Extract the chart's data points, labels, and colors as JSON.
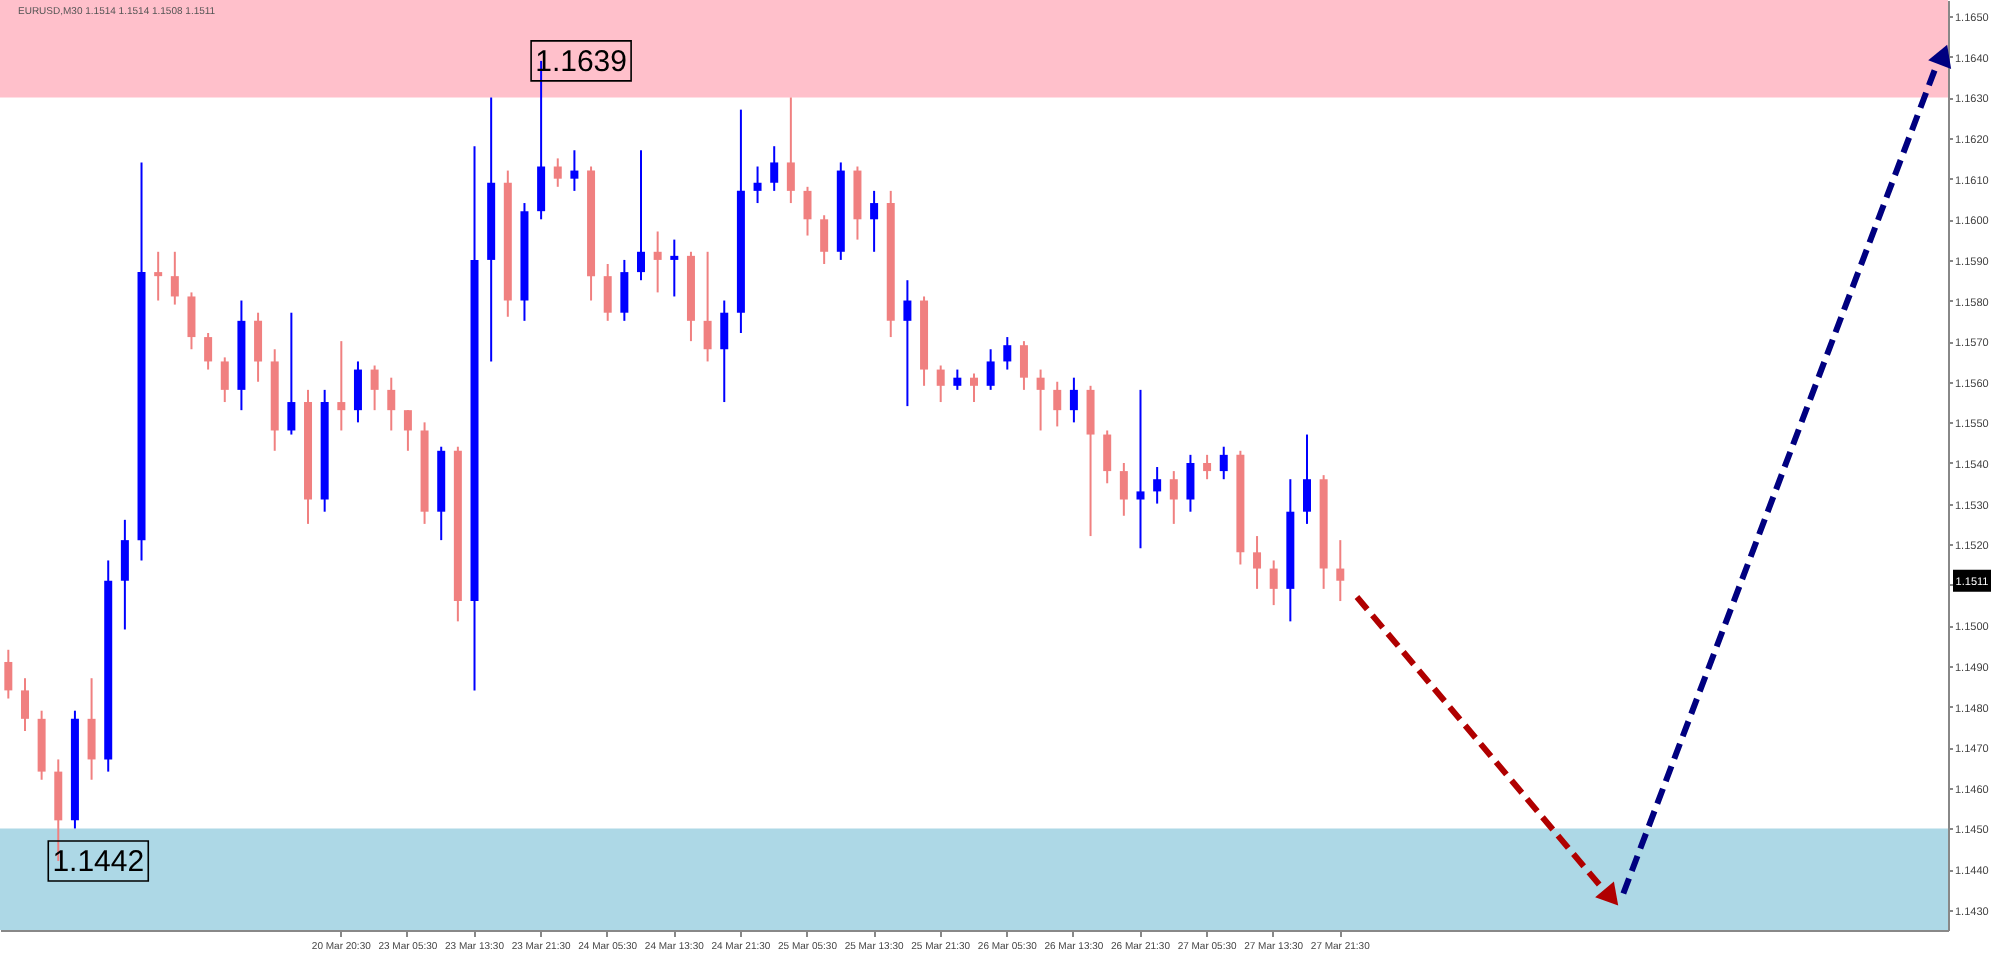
{
  "chart_data": {
    "type": "candlestick",
    "title": "EURUSD,M30 1.1514 1.1514 1.1508 1.1511",
    "categories": [
      null,
      null,
      null,
      null,
      null,
      null,
      null,
      null,
      null,
      null,
      null,
      null,
      null,
      null,
      null,
      null,
      null,
      null,
      null,
      null,
      "20 Mar 20:30",
      null,
      null,
      null,
      "23 Mar 05:30",
      null,
      null,
      null,
      "23 Mar 13:30",
      null,
      null,
      null,
      "23 Mar 21:30",
      null,
      null,
      null,
      "24 Mar 05:30",
      null,
      null,
      null,
      "24 Mar 13:30",
      null,
      null,
      null,
      "24 Mar 21:30",
      null,
      null,
      null,
      "25 Mar 05:30",
      null,
      null,
      null,
      "25 Mar 13:30",
      null,
      null,
      null,
      "25 Mar 21:30",
      null,
      null,
      null,
      "26 Mar 05:30",
      null,
      null,
      null,
      "26 Mar 13:30",
      null,
      null,
      null,
      "26 Mar 21:30",
      null,
      null,
      null,
      "27 Mar 05:30",
      null,
      null,
      null,
      "27 Mar 13:30",
      null,
      null,
      null,
      "27 Mar 21:30",
      null,
      null,
      null,
      null,
      null,
      null,
      null,
      null,
      null,
      null,
      null,
      null,
      null,
      null,
      null,
      null,
      null,
      null,
      null,
      null,
      null,
      null,
      null,
      null,
      null,
      null,
      null,
      null,
      null,
      null,
      null,
      null,
      null,
      null,
      null,
      null
    ],
    "ohlc": [
      [
        1.1491,
        1.1494,
        1.1482,
        1.1484
      ],
      [
        1.1484,
        1.1487,
        1.1474,
        1.1477
      ],
      [
        1.1477,
        1.1479,
        1.1462,
        1.1464
      ],
      [
        1.1464,
        1.1467,
        1.1442,
        1.1452
      ],
      [
        1.1452,
        1.1479,
        1.145,
        1.1477
      ],
      [
        1.1477,
        1.1487,
        1.1462,
        1.1467
      ],
      [
        1.1467,
        1.1516,
        1.1464,
        1.1511
      ],
      [
        1.1511,
        1.1526,
        1.1499,
        1.1521
      ],
      [
        1.1521,
        1.1614,
        1.1516,
        1.1587
      ],
      [
        1.1587,
        1.1592,
        1.158,
        1.1586
      ],
      [
        1.1586,
        1.1592,
        1.1579,
        1.1581
      ],
      [
        1.1581,
        1.1582,
        1.1568,
        1.1571
      ],
      [
        1.1571,
        1.1572,
        1.1563,
        1.1565
      ],
      [
        1.1565,
        1.1566,
        1.1555,
        1.1558
      ],
      [
        1.1558,
        1.158,
        1.1553,
        1.1575
      ],
      [
        1.1575,
        1.1577,
        1.156,
        1.1565
      ],
      [
        1.1565,
        1.1568,
        1.1543,
        1.1548
      ],
      [
        1.1548,
        1.1577,
        1.1547,
        1.1555
      ],
      [
        1.1555,
        1.1558,
        1.1525,
        1.1531
      ],
      [
        1.1531,
        1.1558,
        1.1528,
        1.1555
      ],
      [
        1.1555,
        1.157,
        1.1548,
        1.1553
      ],
      [
        1.1553,
        1.1565,
        1.155,
        1.1563
      ],
      [
        1.1563,
        1.1564,
        1.1553,
        1.1558
      ],
      [
        1.1558,
        1.1561,
        1.1548,
        1.1553
      ],
      [
        1.1553,
        1.1553,
        1.1543,
        1.1548
      ],
      [
        1.1548,
        1.155,
        1.1525,
        1.1528
      ],
      [
        1.1528,
        1.1544,
        1.1521,
        1.1543
      ],
      [
        1.1543,
        1.1544,
        1.1501,
        1.1506
      ],
      [
        1.1506,
        1.1618,
        1.1484,
        1.159
      ],
      [
        1.159,
        1.163,
        1.1565,
        1.1609
      ],
      [
        1.1609,
        1.1612,
        1.1576,
        1.158
      ],
      [
        1.158,
        1.1604,
        1.1575,
        1.1602
      ],
      [
        1.1602,
        1.1639,
        1.16,
        1.1613
      ],
      [
        1.1613,
        1.1615,
        1.1608,
        1.161
      ],
      [
        1.161,
        1.1617,
        1.1607,
        1.1612
      ],
      [
        1.1612,
        1.1613,
        1.158,
        1.1586
      ],
      [
        1.1586,
        1.1589,
        1.1575,
        1.1577
      ],
      [
        1.1577,
        1.159,
        1.1575,
        1.1587
      ],
      [
        1.1587,
        1.1617,
        1.1585,
        1.1592
      ],
      [
        1.1592,
        1.1597,
        1.1582,
        1.159
      ],
      [
        1.159,
        1.1595,
        1.1581,
        1.1591
      ],
      [
        1.1591,
        1.1592,
        1.157,
        1.1575
      ],
      [
        1.1575,
        1.1592,
        1.1565,
        1.1568
      ],
      [
        1.1568,
        1.158,
        1.1555,
        1.1577
      ],
      [
        1.1577,
        1.1627,
        1.1572,
        1.1607
      ],
      [
        1.1607,
        1.1613,
        1.1604,
        1.1609
      ],
      [
        1.1609,
        1.1618,
        1.1607,
        1.1614
      ],
      [
        1.1614,
        1.163,
        1.1604,
        1.1607
      ],
      [
        1.1607,
        1.1608,
        1.1596,
        1.16
      ],
      [
        1.16,
        1.1601,
        1.1589,
        1.1592
      ],
      [
        1.1592,
        1.1614,
        1.159,
        1.1612
      ],
      [
        1.1612,
        1.1613,
        1.1595,
        1.16
      ],
      [
        1.16,
        1.1607,
        1.1592,
        1.1604
      ],
      [
        1.1604,
        1.1607,
        1.1571,
        1.1575
      ],
      [
        1.1575,
        1.1585,
        1.1554,
        1.158
      ],
      [
        1.158,
        1.1581,
        1.1559,
        1.1563
      ],
      [
        1.1563,
        1.1564,
        1.1555,
        1.1559
      ],
      [
        1.1559,
        1.1563,
        1.1558,
        1.1561
      ],
      [
        1.1561,
        1.1562,
        1.1555,
        1.1559
      ],
      [
        1.1559,
        1.1568,
        1.1558,
        1.1565
      ],
      [
        1.1565,
        1.1571,
        1.1563,
        1.1569
      ],
      [
        1.1569,
        1.157,
        1.1558,
        1.1561
      ],
      [
        1.1561,
        1.1563,
        1.1548,
        1.1558
      ],
      [
        1.1558,
        1.156,
        1.1549,
        1.1553
      ],
      [
        1.1553,
        1.1561,
        1.155,
        1.1558
      ],
      [
        1.1558,
        1.1559,
        1.1522,
        1.1547
      ],
      [
        1.1547,
        1.1548,
        1.1535,
        1.1538
      ],
      [
        1.1538,
        1.154,
        1.1527,
        1.1531
      ],
      [
        1.1531,
        1.1558,
        1.1519,
        1.1533
      ],
      [
        1.1533,
        1.1539,
        1.153,
        1.1536
      ],
      [
        1.1536,
        1.1538,
        1.1525,
        1.1531
      ],
      [
        1.1531,
        1.1542,
        1.1528,
        1.154
      ],
      [
        1.154,
        1.1542,
        1.1536,
        1.1538
      ],
      [
        1.1538,
        1.1544,
        1.1536,
        1.1542
      ],
      [
        1.1542,
        1.1543,
        1.1515,
        1.1518
      ],
      [
        1.1518,
        1.1522,
        1.1509,
        1.1514
      ],
      [
        1.1514,
        1.1516,
        1.1505,
        1.1509
      ],
      [
        1.1509,
        1.1536,
        1.1501,
        1.1528
      ],
      [
        1.1528,
        1.1547,
        1.1525,
        1.1536
      ],
      [
        1.1536,
        1.1537,
        1.1509,
        1.1514
      ],
      [
        1.1514,
        1.1521,
        1.1506,
        1.1511
      ],
      null,
      null,
      null,
      null,
      null,
      null,
      null,
      null,
      null,
      null,
      null,
      null,
      null,
      null,
      null,
      null,
      null,
      null,
      null,
      null,
      null,
      null,
      null,
      null,
      null,
      null,
      null,
      null,
      null,
      null,
      null,
      null,
      null,
      null,
      null,
      null
    ],
    "colors": [
      "#f08080",
      "#f08080",
      "#f08080",
      "#f08080",
      "#0000ff",
      "#f08080",
      "#0000ff",
      "#0000ff",
      "#0000ff",
      "#f08080",
      "#f08080",
      "#f08080",
      "#f08080",
      "#f08080",
      "#0000ff",
      "#f08080",
      "#f08080",
      "#0000ff",
      "#f08080",
      "#0000ff",
      "#f08080",
      "#0000ff",
      "#f08080",
      "#f08080",
      "#f08080",
      "#f08080",
      "#0000ff",
      "#f08080",
      "#0000ff",
      "#0000ff",
      "#f08080",
      "#0000ff",
      "#0000ff",
      "#f08080",
      "#0000ff",
      "#f08080",
      "#f08080",
      "#0000ff",
      "#0000ff",
      "#f08080",
      "#0000ff",
      "#f08080",
      "#f08080",
      "#0000ff",
      "#0000ff",
      "#0000ff",
      "#0000ff",
      "#f08080",
      "#f08080",
      "#f08080",
      "#0000ff",
      "#f08080",
      "#0000ff",
      "#f08080",
      "#0000ff",
      "#f08080",
      "#f08080",
      "#0000ff",
      "#f08080",
      "#0000ff",
      "#0000ff",
      "#f08080",
      "#f08080",
      "#f08080",
      "#0000ff",
      "#f08080",
      "#f08080",
      "#f08080",
      "#0000ff",
      "#0000ff",
      "#f08080",
      "#0000ff",
      "#f08080",
      "#0000ff",
      "#f08080",
      "#f08080",
      "#f08080",
      "#0000ff",
      "#0000ff",
      "#f08080",
      "#f08080",
      null,
      null,
      null,
      null,
      null,
      null,
      null,
      null,
      null,
      null,
      null,
      null,
      null,
      null,
      null,
      null,
      null,
      null,
      null,
      null,
      null,
      null,
      null,
      null,
      null,
      null,
      null,
      null,
      null,
      null,
      null,
      null,
      null,
      null,
      null,
      null
    ],
    "series": [
      {
        "type": "line",
        "line_style": "dashed",
        "color": "#b00000",
        "values": [
          null,
          null,
          null,
          null,
          null,
          null,
          null,
          null,
          null,
          null,
          null,
          null,
          null,
          null,
          null,
          null,
          null,
          null,
          null,
          null,
          null,
          null,
          null,
          null,
          null,
          null,
          null,
          null,
          null,
          null,
          null,
          null,
          null,
          null,
          null,
          null,
          null,
          null,
          null,
          null,
          null,
          null,
          null,
          null,
          null,
          null,
          null,
          null,
          null,
          null,
          null,
          null,
          null,
          null,
          null,
          null,
          null,
          null,
          null,
          null,
          null,
          null,
          null,
          null,
          null,
          null,
          null,
          null,
          null,
          null,
          null,
          null,
          null,
          null,
          null,
          null,
          null,
          null,
          null,
          null,
          null,
          1.1507,
          null,
          null,
          null,
          null,
          null,
          null,
          null,
          null,
          null,
          null,
          null,
          null,
          null,
          null,
          1.1434,
          null,
          null,
          null,
          null,
          null,
          null,
          null,
          null,
          null,
          null,
          null,
          null,
          null,
          null,
          null,
          null,
          null,
          null,
          null,
          null
        ]
      },
      {
        "type": "line",
        "line_style": "dashed",
        "color": "#000080",
        "values": [
          null,
          null,
          null,
          null,
          null,
          null,
          null,
          null,
          null,
          null,
          null,
          null,
          null,
          null,
          null,
          null,
          null,
          null,
          null,
          null,
          null,
          null,
          null,
          null,
          null,
          null,
          null,
          null,
          null,
          null,
          null,
          null,
          null,
          null,
          null,
          null,
          null,
          null,
          null,
          null,
          null,
          null,
          null,
          null,
          null,
          null,
          null,
          null,
          null,
          null,
          null,
          null,
          null,
          null,
          null,
          null,
          null,
          null,
          null,
          null,
          null,
          null,
          null,
          null,
          null,
          null,
          null,
          null,
          null,
          null,
          null,
          null,
          null,
          null,
          null,
          null,
          null,
          null,
          null,
          null,
          null,
          null,
          null,
          null,
          null,
          null,
          null,
          null,
          null,
          null,
          null,
          null,
          null,
          null,
          null,
          null,
          null,
          1.1434,
          null,
          null,
          null,
          null,
          null,
          null,
          null,
          null,
          null,
          null,
          null,
          null,
          null,
          null,
          null,
          null,
          null,
          null,
          1.164
        ]
      }
    ],
    "bands": [
      {
        "axis": "y",
        "from": 1.163,
        "to": 1.1654,
        "color": "#ffc0cb"
      },
      {
        "axis": "y",
        "from": 1.1425,
        "to": 1.145,
        "color": "#add8e6"
      }
    ],
    "annotations": [
      "1.1639",
      "1.1442",
      "1.1511"
    ],
    "ylim": [
      1.1425,
      1.1654
    ],
    "yticks": [
      {
        "value": 1.143,
        "label": "1.1430"
      },
      {
        "value": 1.144,
        "label": "1.1440"
      },
      {
        "value": 1.145,
        "label": "1.1450"
      },
      {
        "value": 1.146,
        "label": "1.1460"
      },
      {
        "value": 1.147,
        "label": "1.1470"
      },
      {
        "value": 1.148,
        "label": "1.1480"
      },
      {
        "value": 1.149,
        "label": "1.1490"
      },
      {
        "value": 1.15,
        "label": "1.1500"
      },
      {
        "value": 1.151,
        "label": null
      },
      {
        "value": 1.152,
        "label": "1.1520"
      },
      {
        "value": 1.153,
        "label": "1.1530"
      },
      {
        "value": 1.154,
        "label": "1.1540"
      },
      {
        "value": 1.155,
        "label": "1.1550"
      },
      {
        "value": 1.156,
        "label": "1.1560"
      },
      {
        "value": 1.157,
        "label": "1.1570"
      },
      {
        "value": 1.158,
        "label": "1.1580"
      },
      {
        "value": 1.159,
        "label": "1.1590"
      },
      {
        "value": 1.16,
        "label": "1.1600"
      },
      {
        "value": 1.161,
        "label": "1.1610"
      },
      {
        "value": 1.162,
        "label": "1.1620"
      },
      {
        "value": 1.163,
        "label": "1.1630"
      },
      {
        "value": 1.164,
        "label": "1.1640"
      },
      {
        "value": 1.165,
        "label": "1.1650"
      }
    ]
  }
}
